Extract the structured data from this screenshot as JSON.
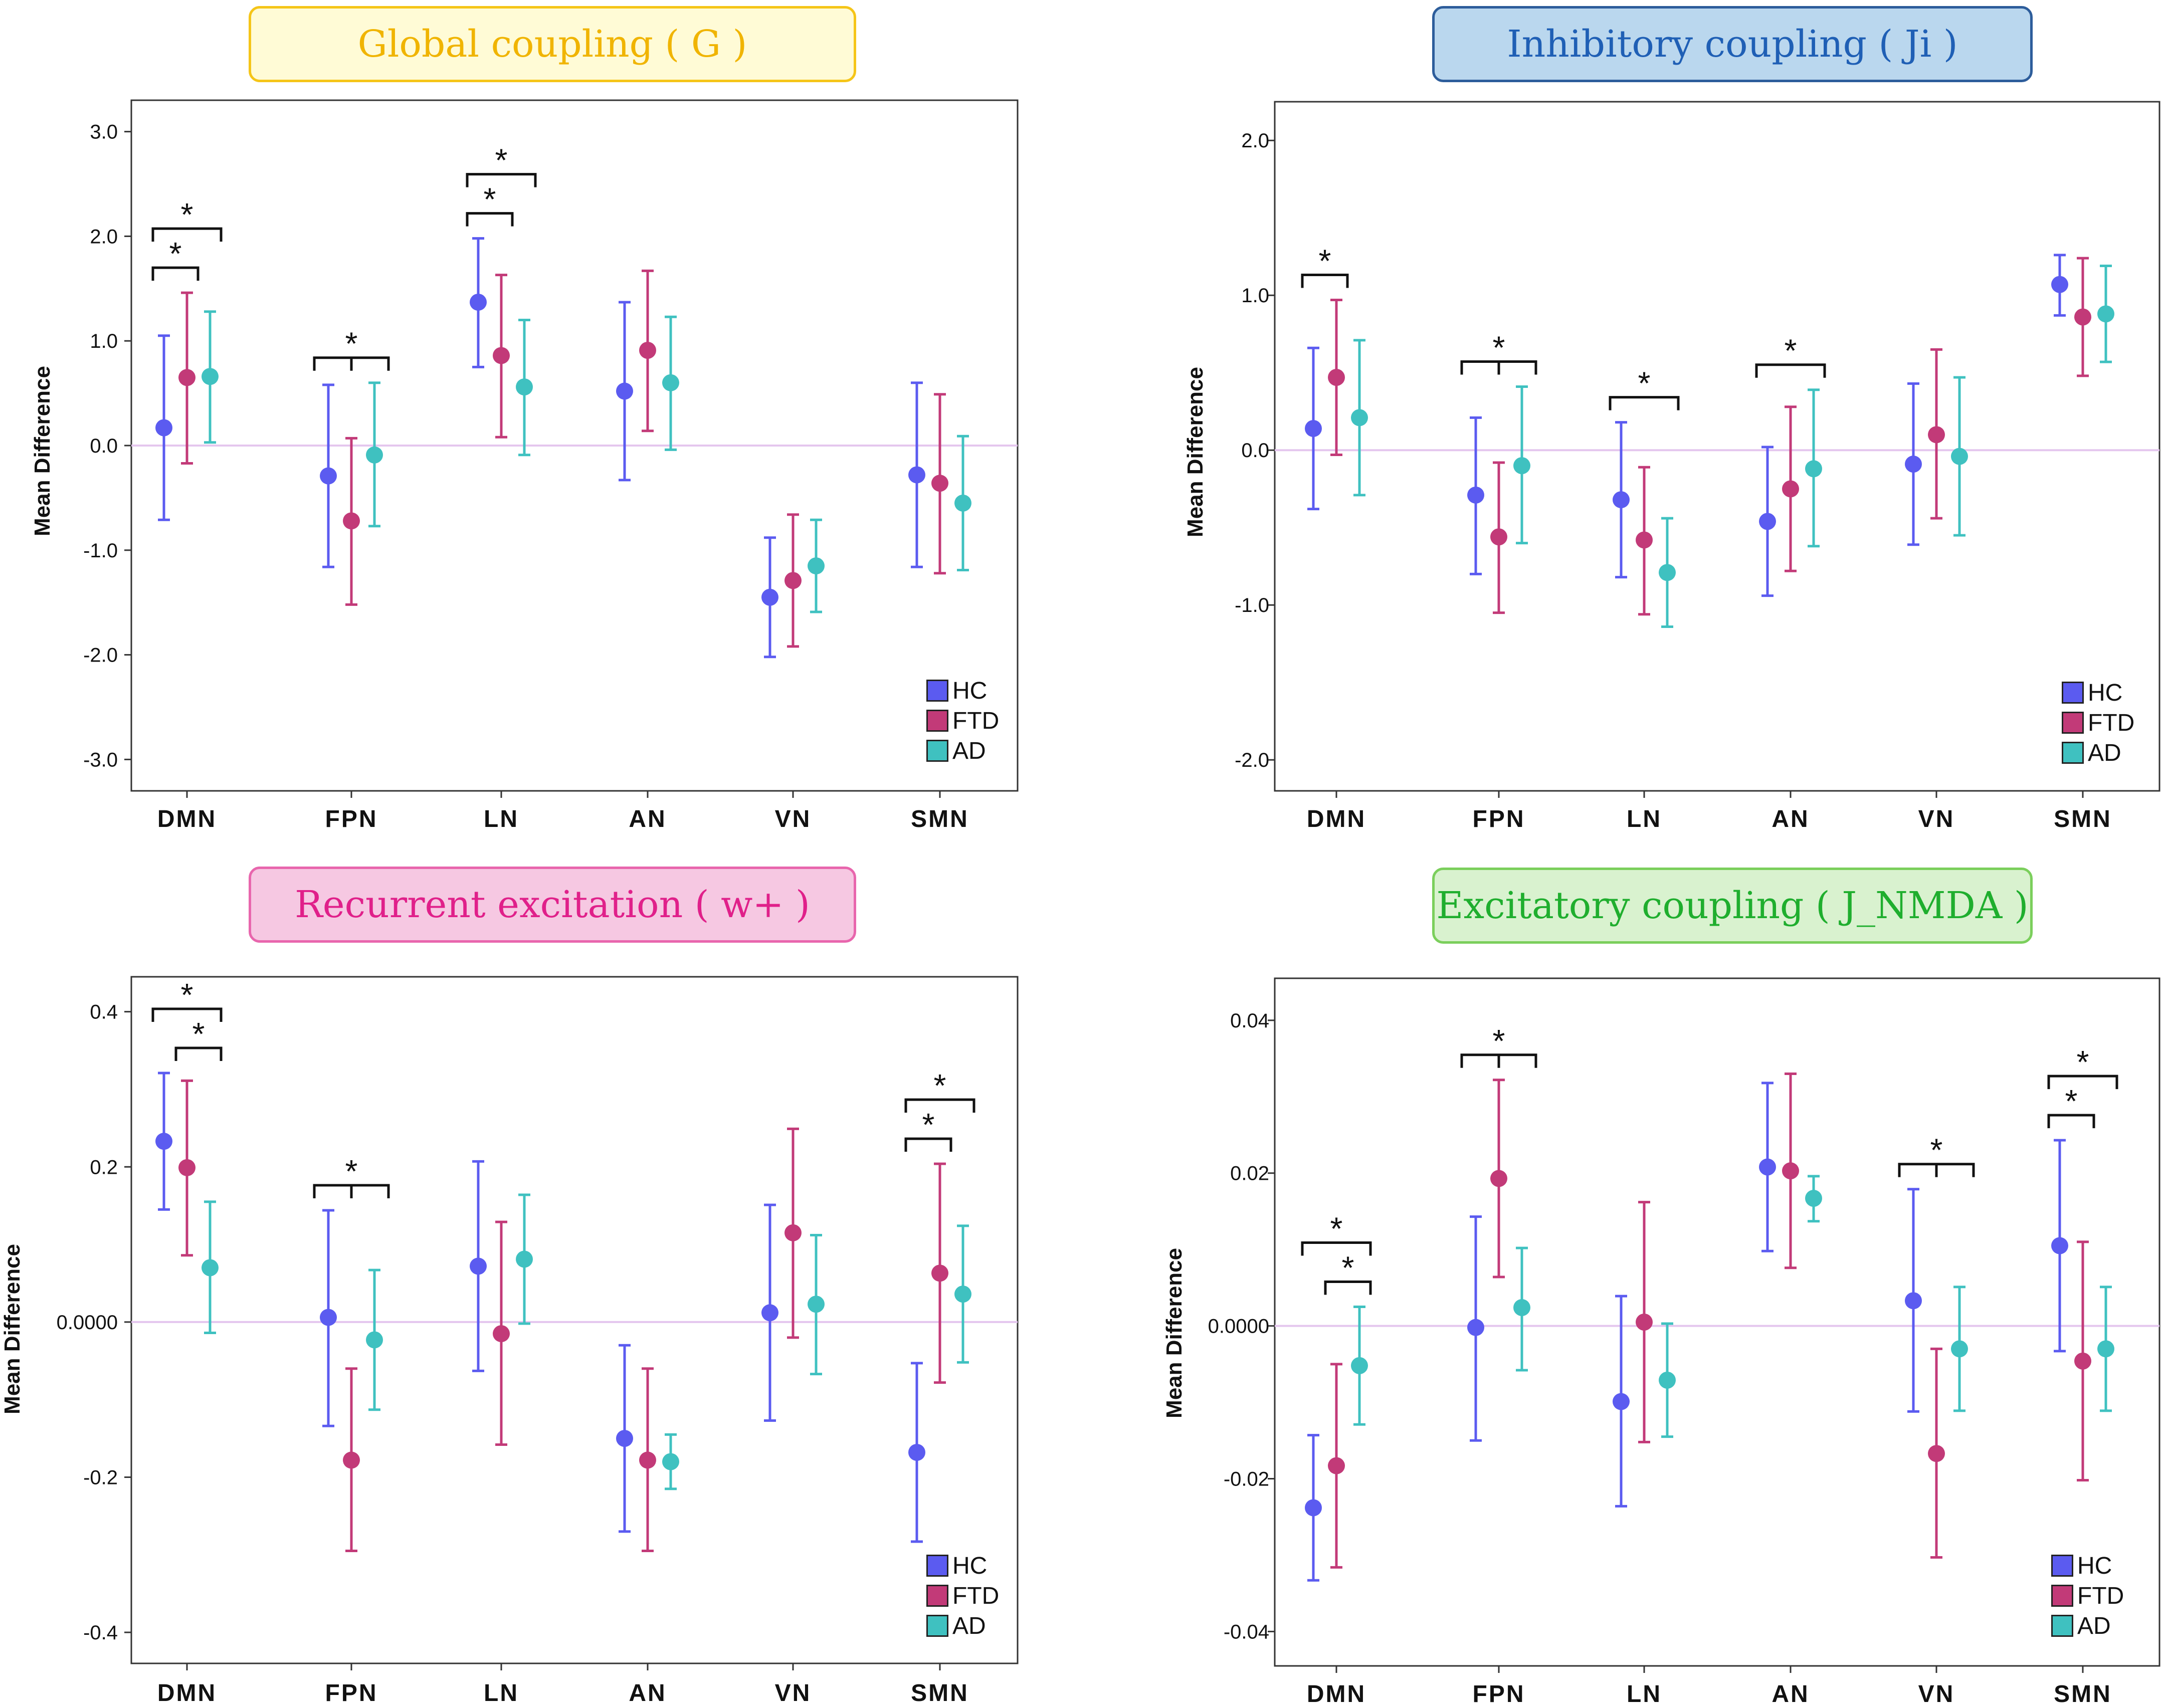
{
  "colors": {
    "HC": "#5b5bf0",
    "FTD": "#c23a78",
    "AD": "#3fc1c0",
    "zero_line": "#e4c6ee"
  },
  "chart_data": [
    {
      "id": "G",
      "type": "scatter",
      "subtype": "error-bar",
      "title": "Global coupling ( G )",
      "title_style": {
        "bg": "#fffbd6",
        "border": "#f5c518",
        "text": "#f0b400"
      },
      "ylabel": "Mean Difference",
      "ylim": [
        -3.3,
        3.3
      ],
      "yticks": [
        "3.0",
        "2.0",
        "1.0",
        "0.0",
        "-1.0",
        "-2.0",
        "-3.0"
      ],
      "ytick_values": [
        3,
        2,
        1,
        0,
        -1,
        -2,
        -3
      ],
      "categories": [
        "DMN",
        "FPN",
        "LN",
        "AN",
        "VN",
        "SMN"
      ],
      "series": [
        {
          "name": "HC",
          "mean": [
            0.17,
            -0.29,
            1.37,
            0.52,
            -1.45,
            -0.28
          ],
          "low": [
            -0.71,
            -1.16,
            0.75,
            -0.33,
            -2.02,
            -1.16
          ],
          "high": [
            1.05,
            0.58,
            1.98,
            1.37,
            -0.88,
            0.6
          ]
        },
        {
          "name": "FTD",
          "mean": [
            0.65,
            -0.72,
            0.86,
            0.91,
            -1.29,
            -0.36
          ],
          "low": [
            -0.17,
            -1.52,
            0.08,
            0.14,
            -1.92,
            -1.22
          ],
          "high": [
            1.46,
            0.07,
            1.63,
            1.67,
            -0.66,
            0.49
          ]
        },
        {
          "name": "AD",
          "mean": [
            0.66,
            -0.09,
            0.56,
            0.6,
            -1.15,
            -0.55
          ],
          "low": [
            0.03,
            -0.77,
            -0.09,
            -0.04,
            -1.59,
            -1.19
          ],
          "high": [
            1.28,
            0.6,
            1.2,
            1.23,
            -0.71,
            0.09
          ]
        }
      ],
      "significance": [
        {
          "category": "DMN",
          "from": "HC",
          "to": "FTD",
          "label": "*",
          "level": 1
        },
        {
          "category": "DMN",
          "from": "HC",
          "to": "AD",
          "label": "*",
          "level": 2
        },
        {
          "category": "FPN",
          "pairs": [
            [
              "HC",
              "FTD"
            ],
            [
              "FTD",
              "AD"
            ]
          ],
          "label": "*",
          "level": 1
        },
        {
          "category": "LN",
          "from": "HC",
          "to": "FTD",
          "label": "*",
          "level": 1
        },
        {
          "category": "LN",
          "from": "HC",
          "to": "AD",
          "label": "*",
          "level": 2
        }
      ],
      "legend": [
        "HC",
        "FTD",
        "AD"
      ]
    },
    {
      "id": "Ji",
      "type": "scatter",
      "subtype": "error-bar",
      "title": "Inhibitory coupling ( Ji )",
      "title_style": {
        "bg": "#bad7ee",
        "border": "#2d5d9b",
        "text": "#1f5fb5"
      },
      "ylabel": "Mean Difference",
      "ylim": [
        -2.2,
        2.25
      ],
      "yticks": [
        "2.0",
        "1.0",
        "0.0",
        "-1.0",
        "-2.0"
      ],
      "ytick_values": [
        2,
        1,
        0,
        -1,
        -2
      ],
      "categories": [
        "DMN",
        "FPN",
        "LN",
        "AN",
        "VN",
        "SMN"
      ],
      "series": [
        {
          "name": "HC",
          "mean": [
            0.14,
            -0.29,
            -0.32,
            -0.46,
            -0.09,
            1.07
          ],
          "low": [
            -0.38,
            -0.8,
            -0.82,
            -0.94,
            -0.61,
            0.87
          ],
          "high": [
            0.66,
            0.21,
            0.18,
            0.02,
            0.43,
            1.26
          ]
        },
        {
          "name": "FTD",
          "mean": [
            0.47,
            -0.56,
            -0.58,
            -0.25,
            0.1,
            0.86
          ],
          "low": [
            -0.03,
            -1.05,
            -1.06,
            -0.78,
            -0.44,
            0.48
          ],
          "high": [
            0.97,
            -0.08,
            -0.11,
            0.28,
            0.65,
            1.24
          ]
        },
        {
          "name": "AD",
          "mean": [
            0.21,
            -0.1,
            -0.79,
            -0.12,
            -0.04,
            0.88
          ],
          "low": [
            -0.29,
            -0.6,
            -1.14,
            -0.62,
            -0.55,
            0.57
          ],
          "high": [
            0.71,
            0.41,
            -0.44,
            0.39,
            0.47,
            1.19
          ]
        }
      ],
      "significance": [
        {
          "category": "DMN",
          "from": "HC",
          "to": "FTD",
          "label": "*",
          "level": 1
        },
        {
          "category": "FPN",
          "pairs": [
            [
              "HC",
              "FTD"
            ],
            [
              "FTD",
              "AD"
            ]
          ],
          "label": "*",
          "level": 1
        },
        {
          "category": "LN",
          "from": "HC",
          "to": "AD",
          "label": "*",
          "level": 1
        },
        {
          "category": "AN",
          "from": "HC",
          "to": "AD",
          "label": "*",
          "level": 1
        }
      ],
      "legend": [
        "HC",
        "FTD",
        "AD"
      ]
    },
    {
      "id": "w",
      "type": "scatter",
      "subtype": "error-bar",
      "title": "Recurrent excitation ( w+ )",
      "title_style": {
        "bg": "#f6c8e2",
        "border": "#e866ad",
        "text": "#e0208a"
      },
      "ylabel": "Mean Difference",
      "ylim": [
        -0.44,
        0.445
      ],
      "yticks": [
        "0.4",
        "0.2",
        "0.0000",
        "-0.2",
        "-0.4"
      ],
      "ytick_values": [
        0.4,
        0.2,
        0,
        -0.2,
        -0.4
      ],
      "categories": [
        "DMN",
        "FPN",
        "LN",
        "AN",
        "VN",
        "SMN"
      ],
      "series": [
        {
          "name": "HC",
          "mean": [
            0.233,
            0.006,
            0.072,
            -0.15,
            0.012,
            -0.168
          ],
          "low": [
            0.145,
            -0.134,
            -0.063,
            -0.27,
            -0.127,
            -0.283
          ],
          "high": [
            0.321,
            0.144,
            0.207,
            -0.03,
            0.151,
            -0.053
          ]
        },
        {
          "name": "FTD",
          "mean": [
            0.199,
            -0.178,
            -0.015,
            -0.178,
            0.115,
            0.063
          ],
          "low": [
            0.086,
            -0.295,
            -0.158,
            -0.295,
            -0.02,
            -0.078
          ],
          "high": [
            0.311,
            -0.06,
            0.129,
            -0.06,
            0.249,
            0.204
          ]
        },
        {
          "name": "AD",
          "mean": [
            0.07,
            -0.023,
            0.081,
            -0.18,
            0.023,
            0.036
          ],
          "low": [
            -0.014,
            -0.113,
            -0.002,
            -0.215,
            -0.067,
            -0.052
          ],
          "high": [
            0.155,
            0.067,
            0.164,
            -0.145,
            0.112,
            0.124
          ]
        }
      ],
      "significance": [
        {
          "category": "DMN",
          "from": "FTD",
          "to": "AD",
          "label": "*",
          "level": 1
        },
        {
          "category": "DMN",
          "from": "HC",
          "to": "AD",
          "label": "*",
          "level": 2
        },
        {
          "category": "FPN",
          "pairs": [
            [
              "HC",
              "FTD"
            ],
            [
              "FTD",
              "AD"
            ]
          ],
          "label": "*",
          "level": 1
        },
        {
          "category": "SMN",
          "from": "HC",
          "to": "FTD",
          "label": "*",
          "level": 1
        },
        {
          "category": "SMN",
          "from": "HC",
          "to": "AD",
          "label": "*",
          "level": 2
        }
      ],
      "legend": [
        "HC",
        "FTD",
        "AD"
      ]
    },
    {
      "id": "JNMDA",
      "type": "scatter",
      "subtype": "error-bar",
      "title": "Excitatory coupling ( J_NMDA )",
      "title_style": {
        "bg": "#d9f2cf",
        "border": "#7bcf5c",
        "text": "#1fae2e"
      },
      "ylabel": "Mean Difference",
      "ylim": [
        -0.0445,
        0.0455
      ],
      "yticks": [
        "0.04",
        "0.02",
        "0.0000",
        "-0.02",
        "-0.04"
      ],
      "ytick_values": [
        0.04,
        0.02,
        0,
        -0.02,
        -0.04
      ],
      "categories": [
        "DMN",
        "FPN",
        "LN",
        "AN",
        "VN",
        "SMN"
      ],
      "series": [
        {
          "name": "HC",
          "mean": [
            -0.0238,
            -0.0002,
            -0.0099,
            0.0208,
            0.0033,
            0.0105
          ],
          "low": [
            -0.0333,
            -0.015,
            -0.0236,
            0.0098,
            -0.0112,
            -0.0033
          ],
          "high": [
            -0.0143,
            0.0143,
            0.0039,
            0.0318,
            0.0179,
            0.0243
          ]
        },
        {
          "name": "FTD",
          "mean": [
            -0.0183,
            0.0193,
            0.0005,
            0.0203,
            -0.0167,
            -0.0046
          ],
          "low": [
            -0.0316,
            0.0064,
            -0.0152,
            0.0076,
            -0.0303,
            -0.0202
          ],
          "high": [
            -0.005,
            0.0322,
            0.0162,
            0.033,
            -0.003,
            0.011
          ]
        },
        {
          "name": "AD",
          "mean": [
            -0.0052,
            0.0024,
            -0.0071,
            0.0167,
            -0.003,
            -0.003
          ],
          "low": [
            -0.0129,
            -0.0058,
            -0.0145,
            0.0137,
            -0.0111,
            -0.0111
          ],
          "high": [
            0.0025,
            0.0102,
            0.0003,
            0.0196,
            0.0051,
            0.0051
          ]
        }
      ],
      "significance": [
        {
          "category": "DMN",
          "from": "FTD",
          "to": "AD",
          "label": "*",
          "level": 1
        },
        {
          "category": "DMN",
          "from": "HC",
          "to": "AD",
          "label": "*",
          "level": 2
        },
        {
          "category": "FPN",
          "pairs": [
            [
              "HC",
              "FTD"
            ],
            [
              "FTD",
              "AD"
            ]
          ],
          "label": "*",
          "level": 1
        },
        {
          "category": "VN",
          "pairs": [
            [
              "HC",
              "FTD"
            ],
            [
              "FTD",
              "AD"
            ]
          ],
          "label": "*",
          "level": 1
        },
        {
          "category": "SMN",
          "from": "HC",
          "to": "FTD",
          "label": "*",
          "level": 1
        },
        {
          "category": "SMN",
          "from": "HC",
          "to": "AD",
          "label": "*",
          "level": 2
        }
      ],
      "legend": [
        "HC",
        "FTD",
        "AD"
      ]
    }
  ]
}
